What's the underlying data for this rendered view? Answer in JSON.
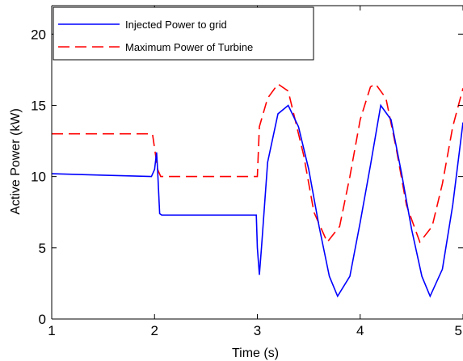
{
  "chart_data": {
    "type": "line",
    "xlabel": "Time (s)",
    "ylabel": "Active Power (kW)",
    "xlim": [
      1,
      5
    ],
    "ylim": [
      0,
      22
    ],
    "x_ticks": [
      "1",
      "2",
      "3",
      "4",
      "5"
    ],
    "y_ticks": [
      "0",
      "5",
      "10",
      "15",
      "20"
    ],
    "grid": false,
    "legend_position": "top-left",
    "series": [
      {
        "name": "Injected Power to grid",
        "color": "#0000ff",
        "style": "solid",
        "x": [
          1.0,
          1.5,
          1.97,
          2.0,
          2.02,
          2.03,
          2.05,
          2.07,
          2.5,
          2.99,
          3.0,
          3.02,
          3.04,
          3.1,
          3.2,
          3.3,
          3.4,
          3.5,
          3.6,
          3.7,
          3.78,
          3.9,
          4.0,
          4.1,
          4.2,
          4.3,
          4.4,
          4.5,
          4.6,
          4.68,
          4.8,
          4.9,
          5.0
        ],
        "y": [
          10.2,
          10.1,
          10.0,
          10.5,
          11.7,
          10.4,
          7.4,
          7.3,
          7.3,
          7.3,
          5.0,
          3.1,
          5.0,
          11.0,
          14.4,
          15.0,
          13.5,
          10.5,
          6.5,
          3.0,
          1.6,
          3.0,
          6.8,
          10.8,
          15.0,
          14.0,
          10.3,
          6.3,
          3.0,
          1.6,
          3.5,
          8.0,
          13.8
        ]
      },
      {
        "name": "Maximum Power of Turbine",
        "color": "#ff0000",
        "style": "dashed",
        "x": [
          1.0,
          1.98,
          2.0,
          2.03,
          2.06,
          2.5,
          3.0,
          3.02,
          3.1,
          3.2,
          3.3,
          3.45,
          3.55,
          3.68,
          3.8,
          3.9,
          4.0,
          4.1,
          4.15,
          4.25,
          4.35,
          4.45,
          4.58,
          4.7,
          4.8,
          4.9,
          5.0
        ],
        "y": [
          13.0,
          13.0,
          12.0,
          10.5,
          10.0,
          10.0,
          10.0,
          13.5,
          15.5,
          16.5,
          16.0,
          11.5,
          7.5,
          5.4,
          6.5,
          10.0,
          14.0,
          16.3,
          16.5,
          15.5,
          12.0,
          8.0,
          5.4,
          6.5,
          9.5,
          13.5,
          16.2
        ]
      }
    ]
  }
}
